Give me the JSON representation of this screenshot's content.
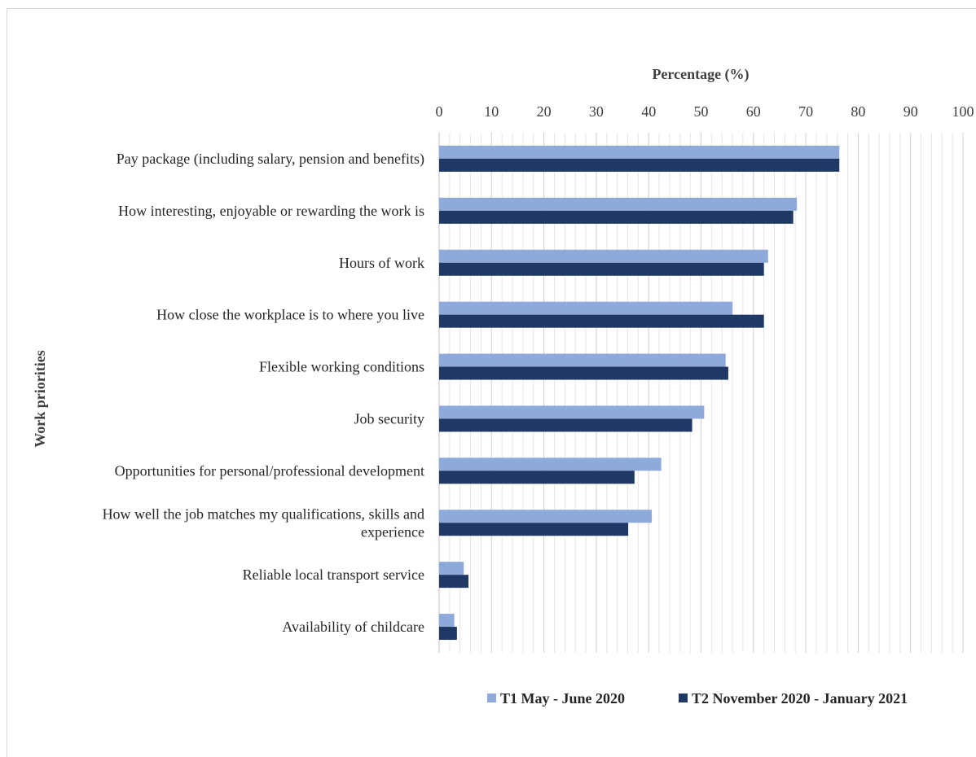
{
  "chart_data": {
    "type": "bar",
    "orientation": "horizontal",
    "xlabel": "Percentage (%)",
    "ylabel": "Work priorities",
    "xlim": [
      0,
      100
    ],
    "xticks": [
      "0",
      "10",
      "20",
      "30",
      "40",
      "50",
      "60",
      "70",
      "80",
      "90",
      "100"
    ],
    "grid": true,
    "legend_position": "bottom",
    "categories": [
      "Pay package (including salary, pension and benefits)",
      "How interesting, enjoyable or rewarding the work is",
      "Hours of work",
      "How close the workplace is to where you live",
      "Flexible working conditions",
      "Job security",
      "Opportunities for personal/professional development",
      "How well the job matches my qualifications, skills and experience",
      "Reliable local transport service",
      "Availability of childcare"
    ],
    "category_lines": [
      [
        "Pay package (including salary, pension and benefits)"
      ],
      [
        "How interesting, enjoyable or rewarding the work is"
      ],
      [
        "Hours of work"
      ],
      [
        "How close the workplace is to where you live"
      ],
      [
        "Flexible working conditions"
      ],
      [
        "Job security"
      ],
      [
        "Opportunities for personal/professional development"
      ],
      [
        "How well the job matches my qualifications, skills and",
        "experience"
      ],
      [
        "Reliable local transport service"
      ],
      [
        "Availability of childcare"
      ]
    ],
    "series": [
      {
        "name": "T1 May - June 2020",
        "color": "#8eaadb",
        "values": [
          76.4,
          68.3,
          62.8,
          56.0,
          54.7,
          50.6,
          42.4,
          40.6,
          4.7,
          2.9
        ]
      },
      {
        "name": "T2 November 2020 - January 2021",
        "color": "#1f3864",
        "values": [
          76.4,
          67.6,
          62.0,
          62.0,
          55.2,
          48.3,
          37.3,
          36.1,
          5.6,
          3.4
        ]
      }
    ]
  }
}
